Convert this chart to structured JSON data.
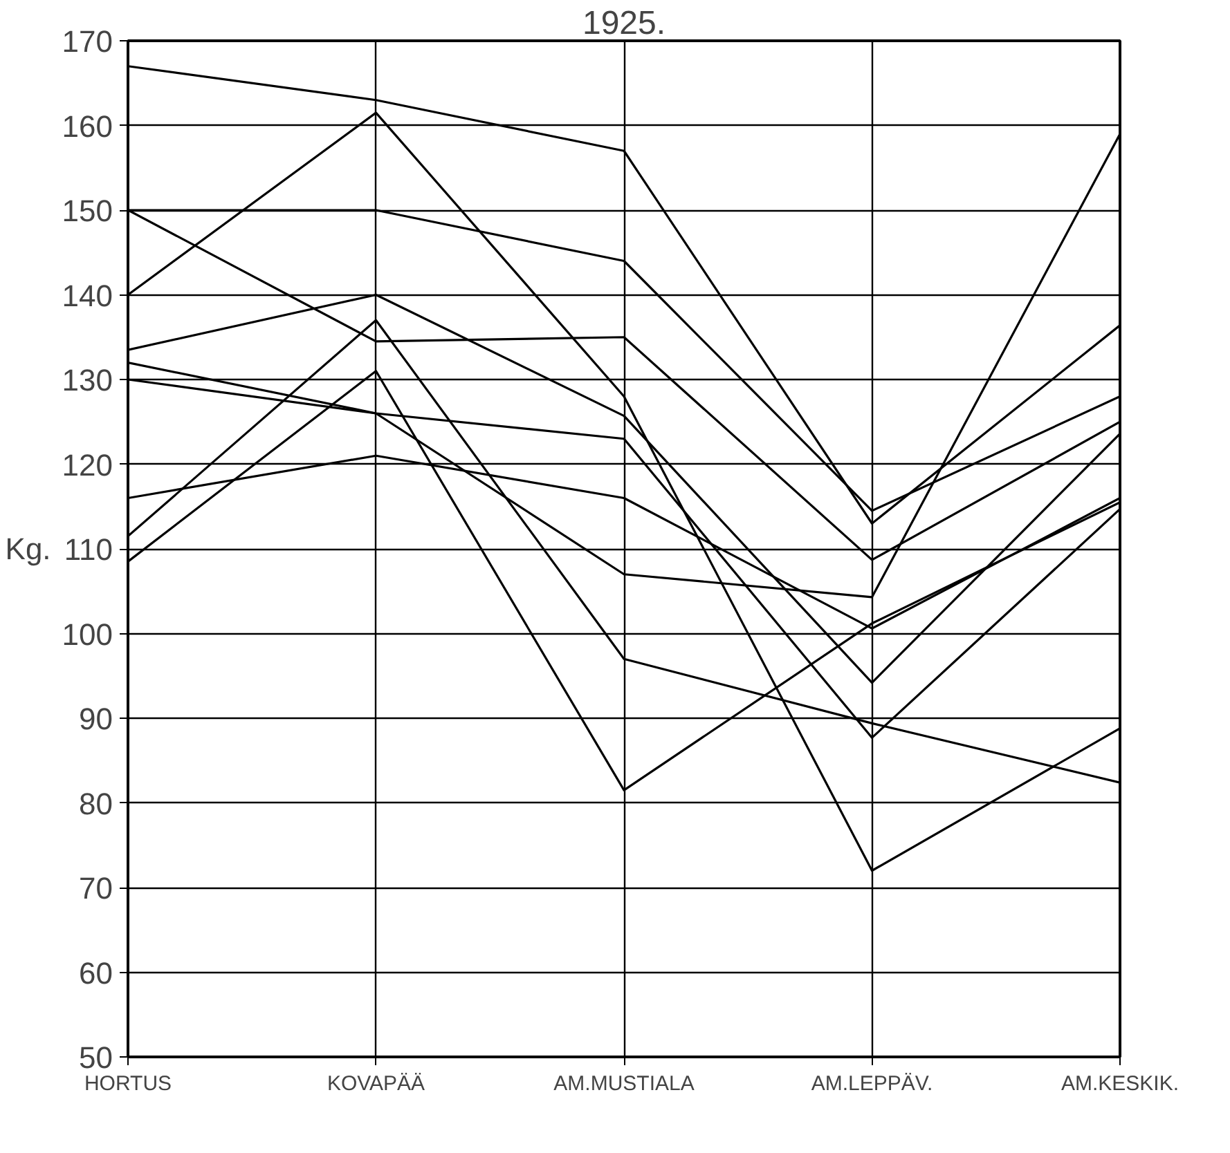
{
  "chart_data": {
    "type": "line",
    "title": "1925.",
    "ylabel": "Kg.",
    "categories": [
      "HORTUS",
      "KOVAPÄÄ",
      "AM.MUSTIALA",
      "AM.LEPPÄV.",
      "AM.KESKIK."
    ],
    "series": [
      {
        "color": "#000000",
        "values": [
          167,
          163,
          157,
          113,
          136.4
        ]
      },
      {
        "color": "#000000",
        "values": [
          150,
          150,
          144,
          114.5,
          128
        ]
      },
      {
        "color": "#000000",
        "values": [
          140,
          161.5,
          128,
          72,
          88.8
        ]
      },
      {
        "color": "#000000",
        "values": [
          150,
          134.5,
          135,
          108.7,
          125
        ]
      },
      {
        "color": "#000000",
        "values": [
          133.5,
          140,
          125.7,
          94.2,
          123.6
        ]
      },
      {
        "color": "#000000",
        "values": [
          132,
          126,
          123,
          87.7,
          114.7
        ]
      },
      {
        "color": "#000000",
        "values": [
          130,
          126,
          107,
          104.3,
          159
        ]
      },
      {
        "color": "#000000",
        "values": [
          116,
          121,
          116,
          100.6,
          116
        ]
      },
      {
        "color": "#000000",
        "values": [
          111.5,
          137,
          97,
          89.4,
          82.4
        ]
      },
      {
        "color": "#000000",
        "values": [
          108.5,
          131,
          81.5,
          101.2,
          115.5
        ]
      }
    ],
    "ylim": [
      50,
      170
    ],
    "yticks": [
      50,
      60,
      70,
      80,
      90,
      100,
      110,
      120,
      130,
      140,
      150,
      160,
      170
    ],
    "grid": true,
    "marker": "none",
    "line_style": "solid"
  }
}
